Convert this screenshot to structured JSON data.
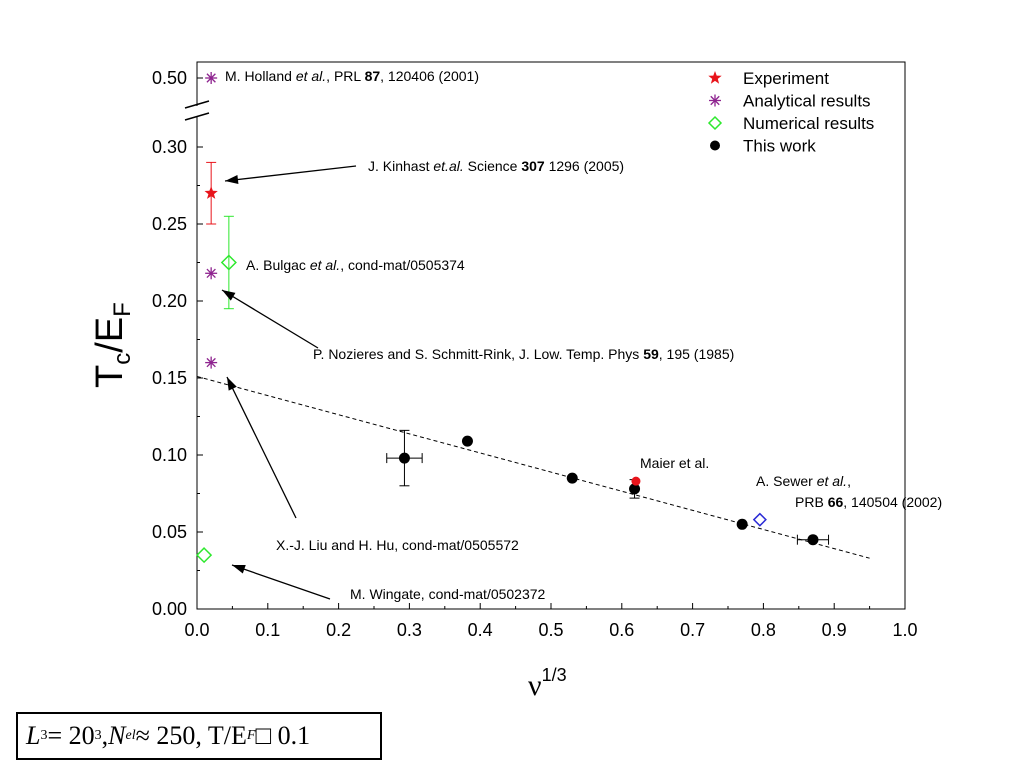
{
  "chart_data": {
    "type": "scatter",
    "ylabel": {
      "main": "T",
      "sub1": "c",
      "mid": "/E",
      "sub2": "F"
    },
    "xlabel": {
      "main": "ν",
      "sup": "1/3"
    },
    "xlim": [
      0.0,
      1.0
    ],
    "ylim": [
      0.0,
      0.3
    ],
    "ybreak_value": 0.5,
    "xticks": [
      "0.0",
      "0.1",
      "0.2",
      "0.3",
      "0.4",
      "0.5",
      "0.6",
      "0.7",
      "0.8",
      "0.9",
      "1.0"
    ],
    "yticks": [
      "0.00",
      "0.05",
      "0.10",
      "0.15",
      "0.20",
      "0.25",
      "0.30"
    ],
    "ybreak_tick": "0.50",
    "legend": [
      {
        "label": "Experiment",
        "marker": "star",
        "color": "#e8141b"
      },
      {
        "label": "Analytical results",
        "marker": "asterisk",
        "color": "#8e248f"
      },
      {
        "label": "Numerical results",
        "marker": "diamond",
        "color": "#2ee82e"
      },
      {
        "label": "This work",
        "marker": "circle",
        "color": "#000000"
      }
    ],
    "series": {
      "experiment": [
        {
          "x": 0.02,
          "y": 0.27,
          "yerr": 0.02
        }
      ],
      "analytical": [
        {
          "x": 0.02,
          "y": 0.5,
          "broken": true
        },
        {
          "x": 0.02,
          "y": 0.218
        },
        {
          "x": 0.02,
          "y": 0.16
        }
      ],
      "numerical_green": [
        {
          "x": 0.045,
          "y": 0.225,
          "yerr": 0.03
        },
        {
          "x": 0.01,
          "y": 0.035
        }
      ],
      "numerical_blue": [
        {
          "x": 0.795,
          "y": 0.058
        }
      ],
      "this_work": [
        {
          "x": 0.293,
          "y": 0.098,
          "xerr": 0.025,
          "yerr": 0.018
        },
        {
          "x": 0.382,
          "y": 0.109
        },
        {
          "x": 0.53,
          "y": 0.085
        },
        {
          "x": 0.618,
          "y": 0.078,
          "yerr": 0.006
        },
        {
          "x": 0.77,
          "y": 0.055
        },
        {
          "x": 0.87,
          "y": 0.045,
          "xerr": 0.022
        }
      ],
      "maier": [
        {
          "x": 0.62,
          "y": 0.083,
          "color": "#e8141b"
        }
      ],
      "fit_line": {
        "x1": 0.0,
        "y1": 0.151,
        "x2": 0.95,
        "y2": 0.033
      }
    },
    "annotations": {
      "holland": {
        "t1": "M. Holland ",
        "t2": "et al.",
        "t3": ", PRL ",
        "t4": "87",
        "t5": ", 120406 (2001)"
      },
      "kinhast": {
        "t1": "J. Kinhast ",
        "t2": "et.al.",
        "t3": " Science ",
        "t4": "307",
        "t5": " 1296 (2005)"
      },
      "bulgac": {
        "t1": "A. Bulgac ",
        "t2": "et al.",
        "t3": ", cond-mat/0505374"
      },
      "nozieres": {
        "t1": "P. Nozieres and S. Schmitt-Rink, J. Low. Temp. Phys ",
        "t2": "59",
        "t3": ", 195 (1985)"
      },
      "liu": {
        "t1": "X.-J. Liu and H. Hu, cond-mat/0505572"
      },
      "wingate": {
        "t1": "M. Wingate, cond-mat/0502372"
      },
      "maier": {
        "t1": "Maier et al.",
        "color": "#e8141b"
      },
      "sewer": {
        "line1_a": "A. Sewer ",
        "line1_b": "et al.",
        "line1_c": ",",
        "line2_a": "PRB ",
        "line2_b": "66",
        "line2_c": ", 140504 (2002)"
      }
    }
  },
  "formula": {
    "L": "L",
    "L_sup": "3",
    "eq1": " = 20",
    "n_sup": "3",
    "comma1": ",  ",
    "N": "N",
    "N_sub": "el",
    "approx": " ≈ 250,  T/E",
    "F_sub": "F",
    "last": " □ 0.1"
  }
}
